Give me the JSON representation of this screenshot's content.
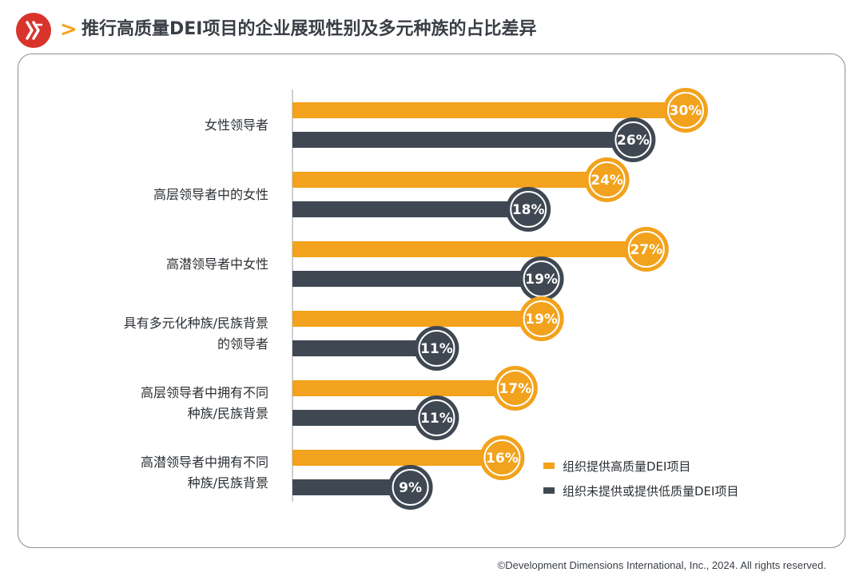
{
  "header": {
    "title": "推行高质量DEI项目的企业展现性别及多元种族的占比差异",
    "chevron": ">",
    "logo_icon": "logo-icon"
  },
  "chart_data": {
    "type": "bar",
    "orientation": "horizontal",
    "categories": [
      [
        "女性领导者"
      ],
      [
        "高层领导者中的女性"
      ],
      [
        "高潜领导者中女性"
      ],
      [
        "具有多元化种族/民族背景",
        "的领导者"
      ],
      [
        "高层领导者中拥有不同",
        "种族/民族背景"
      ],
      [
        "高潜领导者中拥有不同",
        "种族/民族背景"
      ]
    ],
    "series": [
      {
        "name": "组织提供高质量DEI项目",
        "color": "#f2a21c",
        "values": [
          30,
          24,
          27,
          19,
          17,
          16
        ],
        "labels": [
          "30%",
          "24%",
          "27%",
          "19%",
          "17%",
          "16%"
        ]
      },
      {
        "name": "组织未提供或提供低质量DEI项目",
        "color": "#3f4852",
        "values": [
          26,
          18,
          19,
          11,
          11,
          9
        ],
        "labels": [
          "26%",
          "18%",
          "19%",
          "11%",
          "11%",
          "9%"
        ]
      }
    ],
    "value_unit": "%",
    "legend_position": "bottom-right",
    "grid": false
  },
  "footer": {
    "copyright": "©Development Dimensions International, Inc., 2024. All rights reserved."
  }
}
